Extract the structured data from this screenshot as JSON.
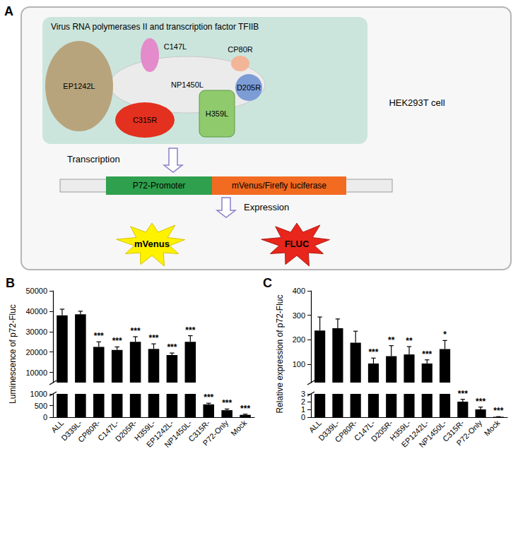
{
  "diagram": {
    "label": "A",
    "complex_title": "Virus RNA polymerases II and transcription factor TFIIB",
    "subunits": [
      "NP1450L",
      "EP1242L",
      "C147L",
      "CP80R",
      "D205R",
      "H359L",
      "C315R"
    ],
    "cell": "HEK293T cell",
    "step1": "Transcription",
    "promoter": "P72-Promoter",
    "reporter": "mVenus/Firefly luciferase",
    "step2": "Expression",
    "products": [
      "mVenus",
      "FLUC"
    ]
  },
  "chart_data": [
    {
      "panel": "B",
      "type": "bar",
      "y_label": "Luminescence of p72-Fluc",
      "categories": [
        "ALL",
        "D339L-",
        "CP80R-",
        "C147L-",
        "D205R-",
        "H359L-",
        "EP1242L-",
        "NP1450L-",
        "C315R-",
        "P72-Only",
        "Mock"
      ],
      "values": [
        38000,
        38500,
        22500,
        21000,
        25000,
        21500,
        18500,
        25000,
        550,
        300,
        100
      ],
      "errors": [
        3000,
        1500,
        2500,
        1500,
        2500,
        2500,
        1000,
        3000,
        50,
        50,
        30
      ],
      "significance": [
        null,
        null,
        "***",
        "***",
        "***",
        "***",
        "***",
        "***",
        "***",
        "***",
        "***"
      ],
      "color": "#000000",
      "y_segments": [
        {
          "ylim": [
            0,
            1000
          ],
          "yticks": [
            0,
            500,
            1000
          ]
        },
        {
          "ylim": [
            5000,
            50000
          ],
          "yticks": [
            10000,
            20000,
            30000,
            40000,
            50000
          ]
        }
      ]
    },
    {
      "panel": "C",
      "type": "bar",
      "y_label": "Relative expression of p72-Fluc",
      "categories": [
        "ALL",
        "D339L-",
        "CP80R-",
        "C147L-",
        "D205R-",
        "H359L-",
        "EP1242L-",
        "NP1450L-",
        "C315R-",
        "P72-Only",
        "Mock"
      ],
      "values": [
        238,
        247,
        188,
        103,
        133,
        140,
        103,
        162,
        2.0,
        1.0,
        0.05
      ],
      "errors": [
        55,
        38,
        47,
        22,
        43,
        32,
        15,
        35,
        0.3,
        0.3,
        0.02
      ],
      "significance": [
        null,
        null,
        null,
        "***",
        "**",
        "**",
        "***",
        "*",
        "***",
        "***",
        "***"
      ],
      "color": "#000000",
      "y_segments": [
        {
          "ylim": [
            0,
            3
          ],
          "yticks": [
            0,
            1,
            2,
            3
          ]
        },
        {
          "ylim": [
            25,
            400
          ],
          "yticks": [
            100,
            200,
            300,
            400
          ]
        }
      ]
    }
  ]
}
